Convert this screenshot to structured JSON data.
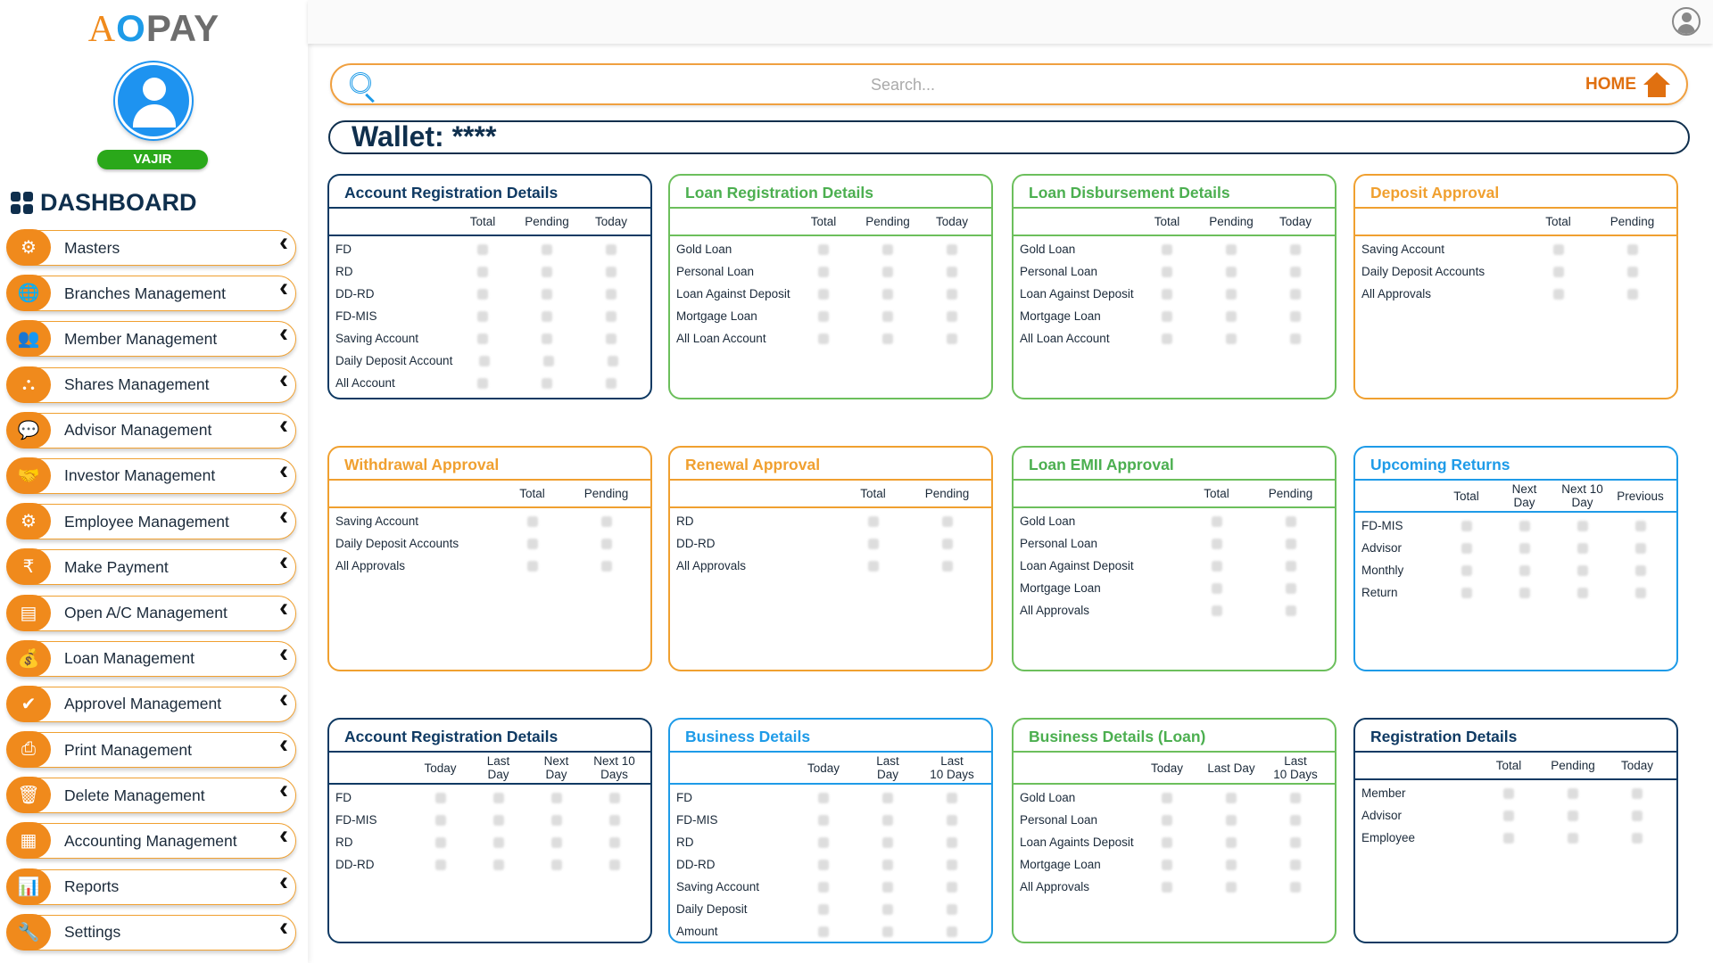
{
  "app": {
    "logo": "AOPAY",
    "user_name": "VAJIR",
    "dashboard_label": "DASHBOARD"
  },
  "colors": {
    "orange": "#f08a1c",
    "navy": "#0f3a63",
    "green": "#5cb85c",
    "blue": "#1e9be8"
  },
  "sidebar": {
    "items": [
      {
        "label": "Masters",
        "icon": "user-gear-icon",
        "glyph": "⚙"
      },
      {
        "label": "Branches Management",
        "icon": "globe-pins-icon",
        "glyph": "🌐"
      },
      {
        "label": "Member Management",
        "icon": "members-icon",
        "glyph": "👥"
      },
      {
        "label": "Shares Management",
        "icon": "share-network-icon",
        "glyph": "⛬"
      },
      {
        "label": "Advisor Management",
        "icon": "advisor-chat-icon",
        "glyph": "💬"
      },
      {
        "label": "Investor Management",
        "icon": "handshake-icon",
        "glyph": "🤝"
      },
      {
        "label": "Employee Management",
        "icon": "employee-gear-icon",
        "glyph": "⚙"
      },
      {
        "label": "Make Payment",
        "icon": "rupee-icon",
        "glyph": "₹"
      },
      {
        "label": "Open A/C Management",
        "icon": "open-account-icon",
        "glyph": "▤"
      },
      {
        "label": "Loan Management",
        "icon": "money-bag-icon",
        "glyph": "💰"
      },
      {
        "label": "Approvel Management",
        "icon": "approval-check-icon",
        "glyph": "✔"
      },
      {
        "label": "Print Management",
        "icon": "printer-icon",
        "glyph": "⎙"
      },
      {
        "label": "Delete Management",
        "icon": "trash-icon",
        "glyph": "🗑"
      },
      {
        "label": "Accounting Management",
        "icon": "accounting-icon",
        "glyph": "▦"
      },
      {
        "label": "Reports",
        "icon": "reports-icon",
        "glyph": "📊"
      },
      {
        "label": "Settings",
        "icon": "settings-icon",
        "glyph": "🔧"
      }
    ]
  },
  "search": {
    "placeholder": "Search...",
    "home_label": "HOME"
  },
  "wallet": {
    "label": "Wallet:",
    "value": "****"
  },
  "cards": [
    {
      "title": "Account Registration Details",
      "color": "navy",
      "cols": [
        "Total",
        "Pending",
        "Today"
      ],
      "rows": [
        "FD",
        "RD",
        "DD-RD",
        "FD-MIS",
        "Saving Account",
        "Daily Deposit Account",
        "All Account"
      ]
    },
    {
      "title": "Loan Registration Details",
      "color": "green",
      "cols": [
        "Total",
        "Pending",
        "Today"
      ],
      "rows": [
        "Gold Loan",
        "Personal Loan",
        "Loan Against Deposit",
        "Mortgage Loan",
        "All Loan Account"
      ]
    },
    {
      "title": "Loan Disbursement Details",
      "color": "green",
      "cols": [
        "Total",
        "Pending",
        "Today"
      ],
      "rows": [
        "Gold Loan",
        "Personal Loan",
        "Loan Against Deposit",
        "Mortgage Loan",
        "All Loan Account"
      ]
    },
    {
      "title": "Deposit Approval",
      "color": "orange",
      "cols": [
        "Total",
        "Pending"
      ],
      "rows": [
        "Saving Account",
        "Daily Deposit Accounts",
        "All Approvals"
      ]
    },
    {
      "title": "Withdrawal Approval",
      "color": "orange",
      "cols": [
        "Total",
        "Pending"
      ],
      "rows": [
        "Saving Account",
        "Daily Deposit Accounts",
        "All Approvals"
      ]
    },
    {
      "title": "Renewal Approval",
      "color": "orange",
      "cols": [
        "Total",
        "Pending"
      ],
      "rows": [
        "RD",
        "DD-RD",
        "All Approvals"
      ]
    },
    {
      "title": "Loan EMII Approval",
      "color": "green",
      "cols": [
        "Total",
        "Pending"
      ],
      "rows": [
        "Gold Loan",
        "Personal Loan",
        "Loan Against Deposit",
        "Mortgage Loan",
        "All Approvals"
      ]
    },
    {
      "title": "Upcoming Returns",
      "color": "blue",
      "cols": [
        "Total",
        "Next\nDay",
        "Next 10\nDay",
        "Previous"
      ],
      "rows": [
        "FD-MIS",
        "Advisor",
        "Monthly",
        "Return"
      ]
    },
    {
      "title": "Account Registration Details",
      "color": "navy",
      "cols": [
        "Today",
        "Last\nDay",
        "Next\nDay",
        "Next 10\nDays"
      ],
      "rows": [
        "FD",
        "FD-MIS",
        "RD",
        "DD-RD"
      ]
    },
    {
      "title": "Business Details",
      "color": "blue",
      "cols": [
        "Today",
        "Last\nDay",
        "Last\n10 Days"
      ],
      "rows": [
        "FD",
        "FD-MIS",
        "RD",
        "DD-RD",
        "Saving Account",
        "Daily Deposit",
        "Amount"
      ]
    },
    {
      "title": "Business Details (Loan)",
      "color": "green",
      "cols": [
        "Today",
        "Last Day",
        "Last\n10 Days"
      ],
      "rows": [
        "Gold  Loan",
        "Personal Loan",
        "Loan Againts Deposit",
        "Mortgage Loan",
        "All Approvals"
      ]
    },
    {
      "title": "Registration Details",
      "color": "navy",
      "cols": [
        "Total",
        "Pending",
        "Today"
      ],
      "rows": [
        "Member",
        "Advisor",
        "Employee"
      ]
    }
  ]
}
